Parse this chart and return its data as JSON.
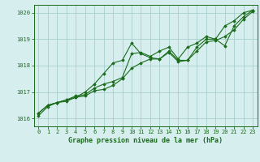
{
  "background_color": "#d6eeee",
  "grid_color": "#a0c8c8",
  "line_color": "#1a6b1a",
  "title": "Graphe pression niveau de la mer (hPa)",
  "ylabel_ticks": [
    1016,
    1017,
    1018,
    1019,
    1020
  ],
  "xlim": [
    -0.5,
    23.5
  ],
  "ylim": [
    1015.7,
    1020.3
  ],
  "x_ticks": [
    0,
    1,
    2,
    3,
    4,
    5,
    6,
    7,
    8,
    9,
    10,
    11,
    12,
    13,
    14,
    15,
    16,
    17,
    18,
    19,
    20,
    21,
    22,
    23
  ],
  "series": {
    "line1": [
      1016.2,
      1016.5,
      1016.6,
      1016.7,
      1016.8,
      1017.0,
      1017.3,
      1017.7,
      1018.1,
      1018.2,
      1018.85,
      1018.45,
      1018.3,
      1018.25,
      1018.55,
      1018.2,
      1018.2,
      1018.7,
      1019.0,
      1019.0,
      1019.5,
      1019.7,
      1020.0,
      1020.1
    ],
    "line2": [
      1016.2,
      1016.5,
      1016.6,
      1016.7,
      1016.85,
      1016.9,
      1017.15,
      1017.3,
      1017.4,
      1017.55,
      1018.45,
      1018.5,
      1018.35,
      1018.55,
      1018.7,
      1018.25,
      1018.7,
      1018.85,
      1019.1,
      1019.0,
      1018.75,
      1019.5,
      1019.85,
      1020.1
    ],
    "line3": [
      1016.1,
      1016.45,
      1016.6,
      1016.65,
      1016.8,
      1016.85,
      1017.05,
      1017.1,
      1017.25,
      1017.5,
      1017.9,
      1018.1,
      1018.25,
      1018.25,
      1018.5,
      1018.15,
      1018.2,
      1018.55,
      1018.9,
      1018.95,
      1019.1,
      1019.35,
      1019.75,
      1020.05
    ]
  }
}
